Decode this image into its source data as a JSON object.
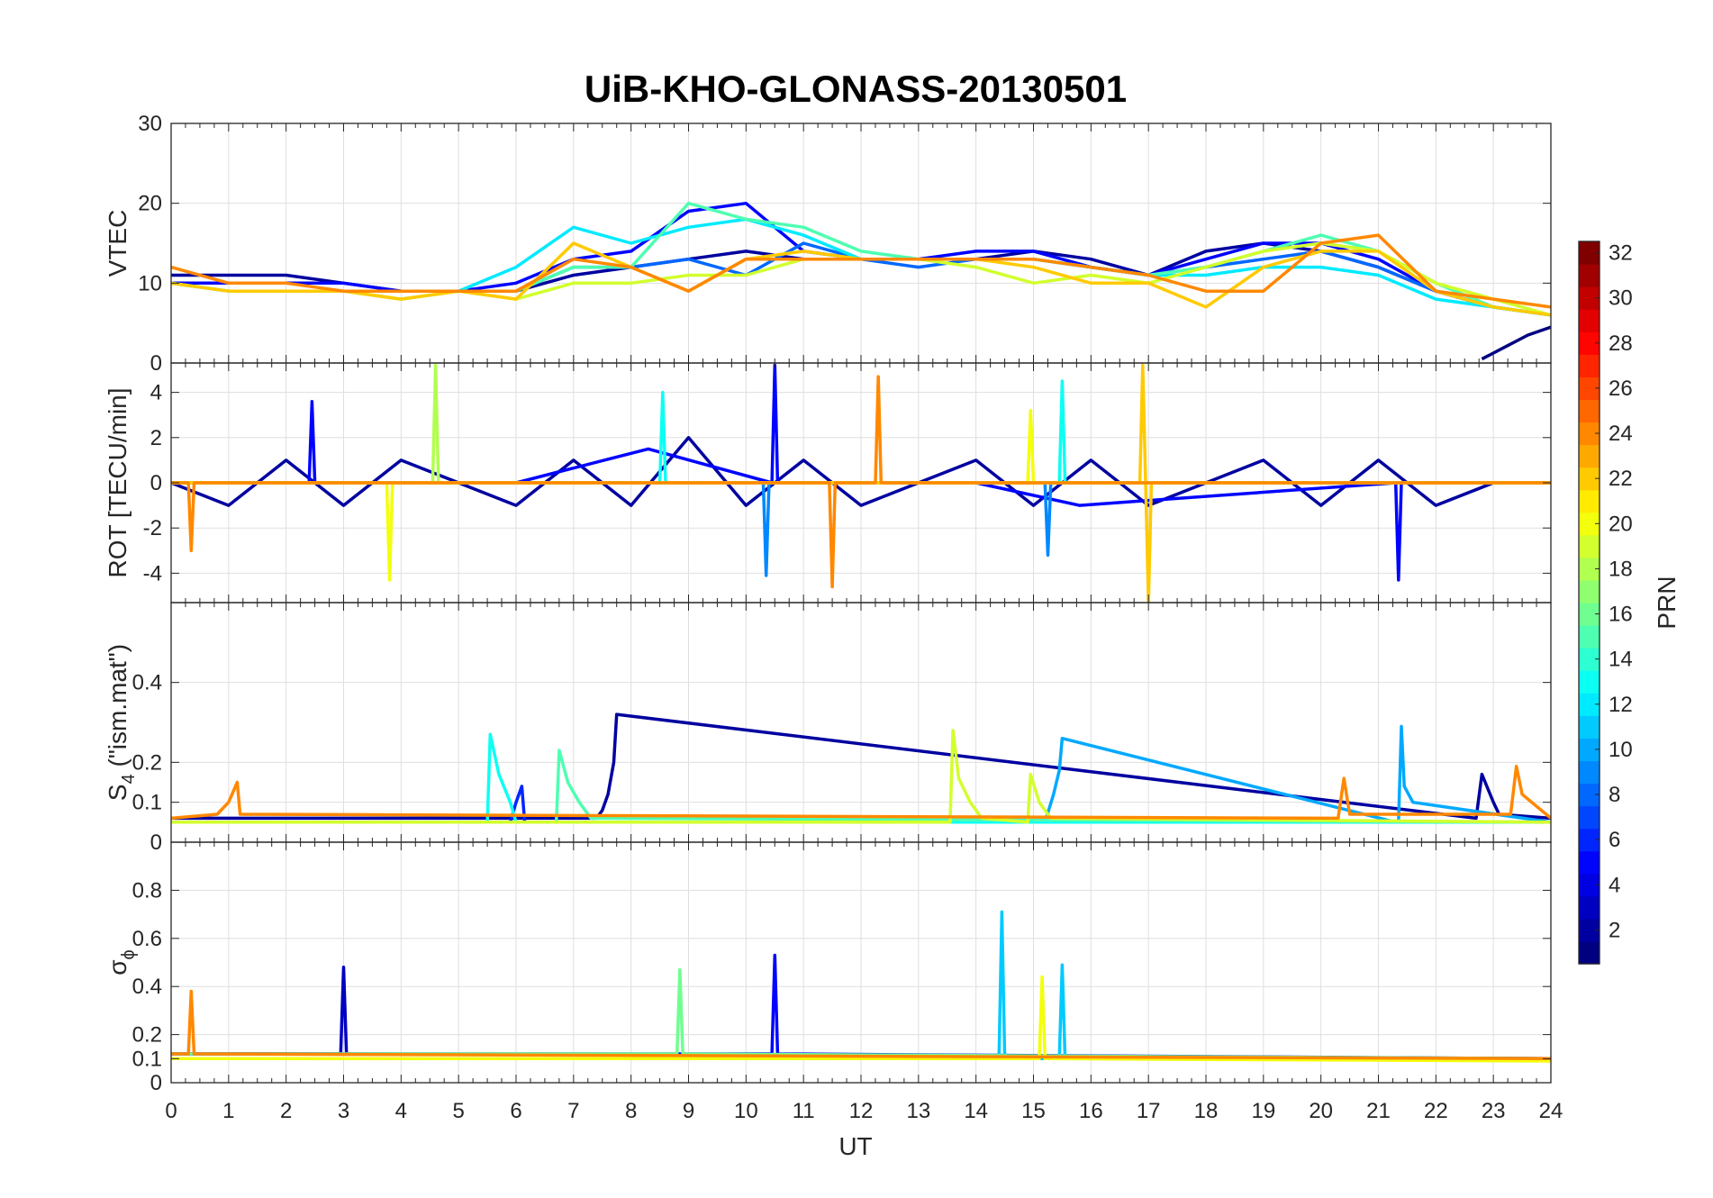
{
  "chart_data": {
    "type": "line",
    "title": "UiB-KHO-GLONASS-20130501",
    "xlabel": "UT",
    "xlim": [
      0,
      24
    ],
    "xticks": [
      "0",
      "1",
      "2",
      "3",
      "4",
      "5",
      "6",
      "7",
      "8",
      "9",
      "10",
      "11",
      "12",
      "13",
      "14",
      "15",
      "16",
      "17",
      "18",
      "19",
      "20",
      "21",
      "22",
      "23",
      "24"
    ],
    "colorbar": {
      "label": "PRN",
      "range": [
        1,
        32
      ],
      "ticks": [
        "2",
        "4",
        "6",
        "8",
        "10",
        "12",
        "14",
        "16",
        "18",
        "20",
        "22",
        "24",
        "26",
        "28",
        "30",
        "32"
      ],
      "colormap": "jet"
    },
    "panels": [
      {
        "id": "vtec",
        "ylabel": "VTEC",
        "ylim": [
          0,
          30
        ],
        "yticks": [
          "0",
          "10",
          "20",
          "30"
        ],
        "series": [
          {
            "prn": 2,
            "x": [
              0,
              1,
              2,
              3,
              4,
              5,
              6,
              7,
              8,
              9,
              10,
              11,
              12,
              13,
              14,
              15,
              16,
              17,
              18,
              19,
              20,
              21,
              22,
              23,
              24
            ],
            "y": [
              11,
              11,
              11,
              10,
              9,
              9,
              9,
              11,
              12,
              13,
              14,
              13,
              13,
              13,
              13,
              14,
              13,
              11,
              14,
              15,
              14,
              12,
              9,
              7,
              6
            ]
          },
          {
            "prn": 5,
            "x": [
              0,
              1,
              2,
              3,
              4,
              5,
              6,
              7,
              8,
              9,
              10,
              11,
              12,
              13,
              14,
              15,
              16,
              17,
              18,
              19,
              20,
              21,
              22,
              23
            ],
            "y": [
              10,
              10,
              10,
              10,
              9,
              9,
              10,
              13,
              14,
              19,
              20,
              14,
              13,
              13,
              14,
              14,
              12,
              11,
              13,
              15,
              15,
              13,
              9,
              7
            ]
          },
          {
            "prn": 8,
            "x": [
              0,
              1,
              2,
              3,
              4,
              5,
              6,
              7,
              8,
              9,
              10,
              11,
              12,
              13,
              14,
              15,
              16,
              17,
              18,
              19,
              20,
              21,
              22,
              23,
              24
            ],
            "y": [
              10,
              9,
              9,
              9,
              9,
              9,
              9,
              12,
              12,
              13,
              11,
              15,
              13,
              12,
              13,
              13,
              12,
              11,
              12,
              13,
              14,
              12,
              9,
              7,
              6
            ]
          },
          {
            "prn": 12,
            "x": [
              0,
              1,
              2,
              3,
              4,
              5,
              6,
              7,
              8,
              9,
              10,
              11,
              12,
              13,
              14,
              15,
              16,
              17,
              18,
              19,
              20,
              21,
              22,
              23,
              24
            ],
            "y": [
              10,
              9,
              9,
              9,
              9,
              9,
              12,
              17,
              15,
              17,
              18,
              16,
              13,
              13,
              13,
              13,
              12,
              11,
              11,
              12,
              12,
              11,
              8,
              7,
              6
            ]
          },
          {
            "prn": 15,
            "x": [
              0,
              1,
              2,
              3,
              4,
              5,
              6,
              7,
              8,
              9,
              10,
              11,
              12,
              13,
              14,
              15,
              16,
              17,
              18,
              19,
              20,
              21,
              22,
              23,
              24
            ],
            "y": [
              10,
              9,
              9,
              9,
              8,
              9,
              9,
              12,
              12,
              20,
              18,
              17,
              14,
              13,
              13,
              13,
              12,
              11,
              12,
              14,
              16,
              14,
              10,
              7,
              6
            ]
          },
          {
            "prn": 19,
            "x": [
              0,
              1,
              2,
              3,
              4,
              5,
              6,
              7,
              8,
              9,
              10,
              11,
              12,
              13,
              14,
              15,
              16,
              17,
              18,
              19,
              20,
              21,
              22,
              23,
              24
            ],
            "y": [
              10,
              9,
              9,
              9,
              8,
              9,
              8,
              10,
              10,
              11,
              11,
              13,
              13,
              13,
              12,
              10,
              11,
              10,
              12,
              14,
              15,
              14,
              10,
              8,
              6
            ]
          },
          {
            "prn": 22,
            "x": [
              0,
              1,
              2,
              3,
              4,
              5,
              6,
              7,
              8,
              9,
              10,
              11,
              12,
              13,
              14,
              15,
              16,
              17,
              18,
              19,
              20,
              21,
              22,
              23,
              24
            ],
            "y": [
              10,
              9,
              9,
              9,
              8,
              9,
              8,
              15,
              12,
              9,
              13,
              14,
              13,
              13,
              13,
              12,
              10,
              10,
              7,
              12,
              14,
              14,
              9,
              7,
              6
            ]
          },
          {
            "prn": 24,
            "x": [
              0,
              1,
              2,
              3,
              4,
              5,
              6,
              7,
              8,
              9,
              10,
              11,
              12,
              13,
              14,
              15,
              16,
              17,
              18,
              19,
              20,
              21,
              22,
              23,
              24
            ],
            "y": [
              12,
              10,
              10,
              9,
              9,
              9,
              9,
              13,
              12,
              9,
              13,
              13,
              13,
              13,
              13,
              13,
              12,
              11,
              9,
              9,
              15,
              16,
              9,
              8,
              7
            ]
          },
          {
            "prn": 1,
            "x": [
              22.8,
              23.2,
              23.6,
              24
            ],
            "y": [
              0.5,
              2,
              3.5,
              4.5
            ]
          }
        ]
      },
      {
        "id": "rot",
        "ylabel": "ROT [TECU/min]",
        "ylim": [
          -5.3,
          5.3
        ],
        "yticks": [
          "-4",
          "-2",
          "0",
          "2",
          "4"
        ],
        "series": [
          {
            "prn": 2,
            "x": [
              0,
              1,
              2,
              3,
              4,
              5,
              6,
              7,
              8,
              9,
              10,
              11,
              12,
              13,
              14,
              15,
              16,
              17,
              18,
              19,
              20,
              21,
              22,
              23,
              24
            ],
            "y": [
              0,
              -1,
              1,
              -1,
              1,
              0,
              -1,
              1,
              -1,
              2,
              -1,
              1,
              -1,
              0,
              1,
              -1,
              1,
              -1,
              0,
              1,
              -1,
              1,
              -1,
              0,
              0
            ]
          },
          {
            "prn": 5,
            "x": [
              0,
              2.4,
              2.45,
              2.5,
              6,
              8.3,
              10.45,
              10.5,
              10.55,
              14,
              15.8,
              21.3,
              21.35,
              21.4,
              24
            ],
            "y": [
              0,
              0,
              3.6,
              0,
              0,
              1.5,
              0,
              5.2,
              0,
              0,
              -1,
              0,
              -4.3,
              0,
              0
            ]
          },
          {
            "prn": 9,
            "x": [
              0,
              10.3,
              10.35,
              10.4,
              15.2,
              15.25,
              15.3,
              24
            ],
            "y": [
              0,
              0,
              -4.1,
              0,
              0,
              -3.2,
              0,
              0
            ]
          },
          {
            "prn": 13,
            "x": [
              0,
              8.5,
              8.55,
              8.6,
              15.45,
              15.5,
              15.55,
              24
            ],
            "y": [
              0,
              0,
              4,
              0,
              0,
              4.5,
              0,
              0
            ]
          },
          {
            "prn": 18,
            "x": [
              0,
              4.55,
              4.6,
              4.65,
              24
            ],
            "y": [
              0,
              0,
              5.2,
              0,
              0
            ]
          },
          {
            "prn": 20,
            "x": [
              0,
              3.75,
              3.8,
              3.85,
              14.9,
              14.95,
              15,
              24
            ],
            "y": [
              0,
              0,
              -4.3,
              0,
              0,
              3.2,
              0,
              0
            ]
          },
          {
            "prn": 22,
            "x": [
              0,
              16.85,
              16.9,
              16.95,
              17,
              17.05,
              24
            ],
            "y": [
              0,
              0,
              5.2,
              0,
              -5.3,
              0,
              0
            ]
          },
          {
            "prn": 24,
            "x": [
              0,
              0.3,
              0.35,
              0.4,
              11.45,
              11.5,
              11.55,
              12.25,
              12.3,
              12.35,
              24
            ],
            "y": [
              0,
              0,
              -3,
              0,
              0,
              -4.6,
              0,
              0,
              4.7,
              0,
              0
            ]
          }
        ]
      },
      {
        "id": "s4",
        "ylabel": "S4 (\"ism.mat\")",
        "ylabel_base": "S",
        "ylabel_sub": "4",
        "ylabel_rest": " (\"ism.mat\")",
        "ylim": [
          0,
          0.6
        ],
        "yticks": [
          "0",
          "0.1",
          "0.2",
          "0.4"
        ],
        "series": [
          {
            "prn": 2,
            "x": [
              0,
              7.4,
              7.5,
              7.6,
              7.7,
              7.75,
              22.7,
              22.8,
              23,
              23.1,
              24
            ],
            "y": [
              0.06,
              0.06,
              0.08,
              0.12,
              0.2,
              0.32,
              0.06,
              0.17,
              0.1,
              0.07,
              0.06
            ]
          },
          {
            "prn": 6,
            "x": [
              0,
              5.9,
              6,
              6.1,
              6.15,
              24
            ],
            "y": [
              0.05,
              0.05,
              0.1,
              0.14,
              0.05,
              0.05
            ]
          },
          {
            "prn": 10,
            "x": [
              0,
              15.2,
              15.35,
              15.45,
              15.5,
              21.3,
              21.35,
              21.4,
              21.45,
              21.6,
              24
            ],
            "y": [
              0.05,
              0.05,
              0.12,
              0.18,
              0.26,
              0.05,
              0.05,
              0.29,
              0.14,
              0.1,
              0.05
            ]
          },
          {
            "prn": 13,
            "x": [
              0,
              5.5,
              5.55,
              5.7,
              5.9,
              6,
              24
            ],
            "y": [
              0.05,
              0.05,
              0.27,
              0.17,
              0.1,
              0.05,
              0.05
            ]
          },
          {
            "prn": 15,
            "x": [
              0,
              6.7,
              6.75,
              6.9,
              7.1,
              7.3,
              24
            ],
            "y": [
              0.05,
              0.05,
              0.23,
              0.15,
              0.1,
              0.06,
              0.05
            ]
          },
          {
            "prn": 19,
            "x": [
              0,
              13.55,
              13.6,
              13.7,
              13.9,
              14.1,
              14.9,
              14.95,
              15.1,
              15.3,
              24
            ],
            "y": [
              0.05,
              0.05,
              0.28,
              0.16,
              0.1,
              0.06,
              0.05,
              0.17,
              0.1,
              0.06,
              0.05
            ]
          },
          {
            "prn": 24,
            "x": [
              0,
              0.8,
              1,
              1.15,
              1.2,
              20.3,
              20.4,
              20.5,
              23.3,
              23.4,
              23.5,
              24
            ],
            "y": [
              0.06,
              0.07,
              0.1,
              0.15,
              0.07,
              0.06,
              0.16,
              0.07,
              0.07,
              0.19,
              0.12,
              0.06
            ]
          }
        ]
      },
      {
        "id": "sigma_phi",
        "ylabel": "σ ϕ",
        "ylabel_base": "σ",
        "ylabel_sub": "ϕ",
        "ylabel_rest": "",
        "ylim": [
          0,
          1
        ],
        "yticks": [
          "0",
          "0.1",
          "0.2",
          "0.4",
          "0.6",
          "0.8"
        ],
        "series": [
          {
            "prn": 3,
            "x": [
              0,
              2.95,
              3,
              3.05,
              24
            ],
            "y": [
              0.12,
              0.12,
              0.48,
              0.12,
              0.1
            ]
          },
          {
            "prn": 5,
            "x": [
              0,
              10.45,
              10.5,
              10.55,
              24
            ],
            "y": [
              0.12,
              0.12,
              0.53,
              0.12,
              0.1
            ]
          },
          {
            "prn": 11,
            "x": [
              0,
              14.4,
              14.45,
              14.5,
              15.45,
              15.5,
              15.55,
              24
            ],
            "y": [
              0.1,
              0.1,
              0.71,
              0.1,
              0.1,
              0.49,
              0.1,
              0.1
            ]
          },
          {
            "prn": 16,
            "x": [
              0,
              8.8,
              8.85,
              8.9,
              24
            ],
            "y": [
              0.12,
              0.12,
              0.47,
              0.12,
              0.1
            ]
          },
          {
            "prn": 20,
            "x": [
              0,
              15.1,
              15.15,
              15.2,
              24
            ],
            "y": [
              0.1,
              0.1,
              0.44,
              0.1,
              0.09
            ]
          },
          {
            "prn": 24,
            "x": [
              0,
              0.3,
              0.35,
              0.4,
              24
            ],
            "y": [
              0.12,
              0.12,
              0.38,
              0.12,
              0.1
            ]
          }
        ]
      }
    ]
  }
}
